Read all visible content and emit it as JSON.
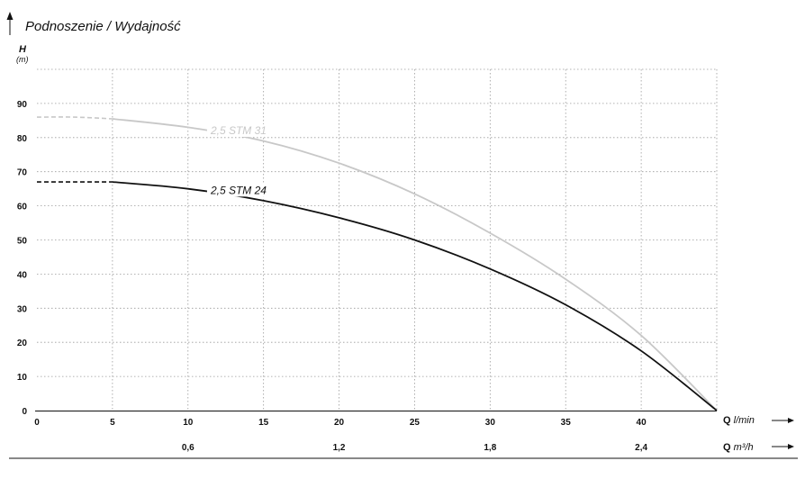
{
  "header": {
    "title": "Podnoszenie / Wydajność",
    "y_symbol": "H",
    "y_unit": "(m)"
  },
  "chart_data": {
    "type": "line",
    "title": "Podnoszenie / Wydajność",
    "ylabel": "H (m)",
    "xlabel": "Q l/min",
    "secondary_xlabel": "Q m³/h",
    "xlim": [
      0,
      45
    ],
    "ylim": [
      0,
      100
    ],
    "y_ticks": [
      0,
      10,
      20,
      30,
      40,
      50,
      60,
      70,
      80,
      90
    ],
    "x_ticks": [
      0,
      5,
      10,
      15,
      20,
      25,
      30,
      35,
      40
    ],
    "x_tick_labels": [
      "0",
      "5",
      "10",
      "15",
      "20",
      "25",
      "30",
      "35",
      "40"
    ],
    "secondary_x_ticks": [
      {
        "x": 10,
        "label": "0,6"
      },
      {
        "x": 20,
        "label": "1,2"
      },
      {
        "x": 30,
        "label": "1,8"
      },
      {
        "x": 40,
        "label": "2,4"
      }
    ],
    "grid": true,
    "series": [
      {
        "name": "2,5 STM 31",
        "color": "#c8c8c8",
        "label_at": [
          11.5,
          81
        ],
        "dashed_until": 5,
        "x": [
          0,
          2.5,
          5,
          10,
          15,
          20,
          25,
          30,
          35,
          40,
          45
        ],
        "y": [
          86,
          86,
          85.5,
          83,
          79,
          72.5,
          63.5,
          52,
          38.5,
          22,
          0
        ]
      },
      {
        "name": "2,5 STM 24",
        "color": "#111111",
        "label_at": [
          11.5,
          63.5
        ],
        "dashed_until": 5,
        "x": [
          0,
          2.5,
          5,
          10,
          15,
          20,
          25,
          30,
          35,
          40,
          45
        ],
        "y": [
          67,
          67,
          67,
          65,
          61.5,
          56.5,
          50,
          41.5,
          31,
          17.5,
          0
        ]
      }
    ]
  }
}
